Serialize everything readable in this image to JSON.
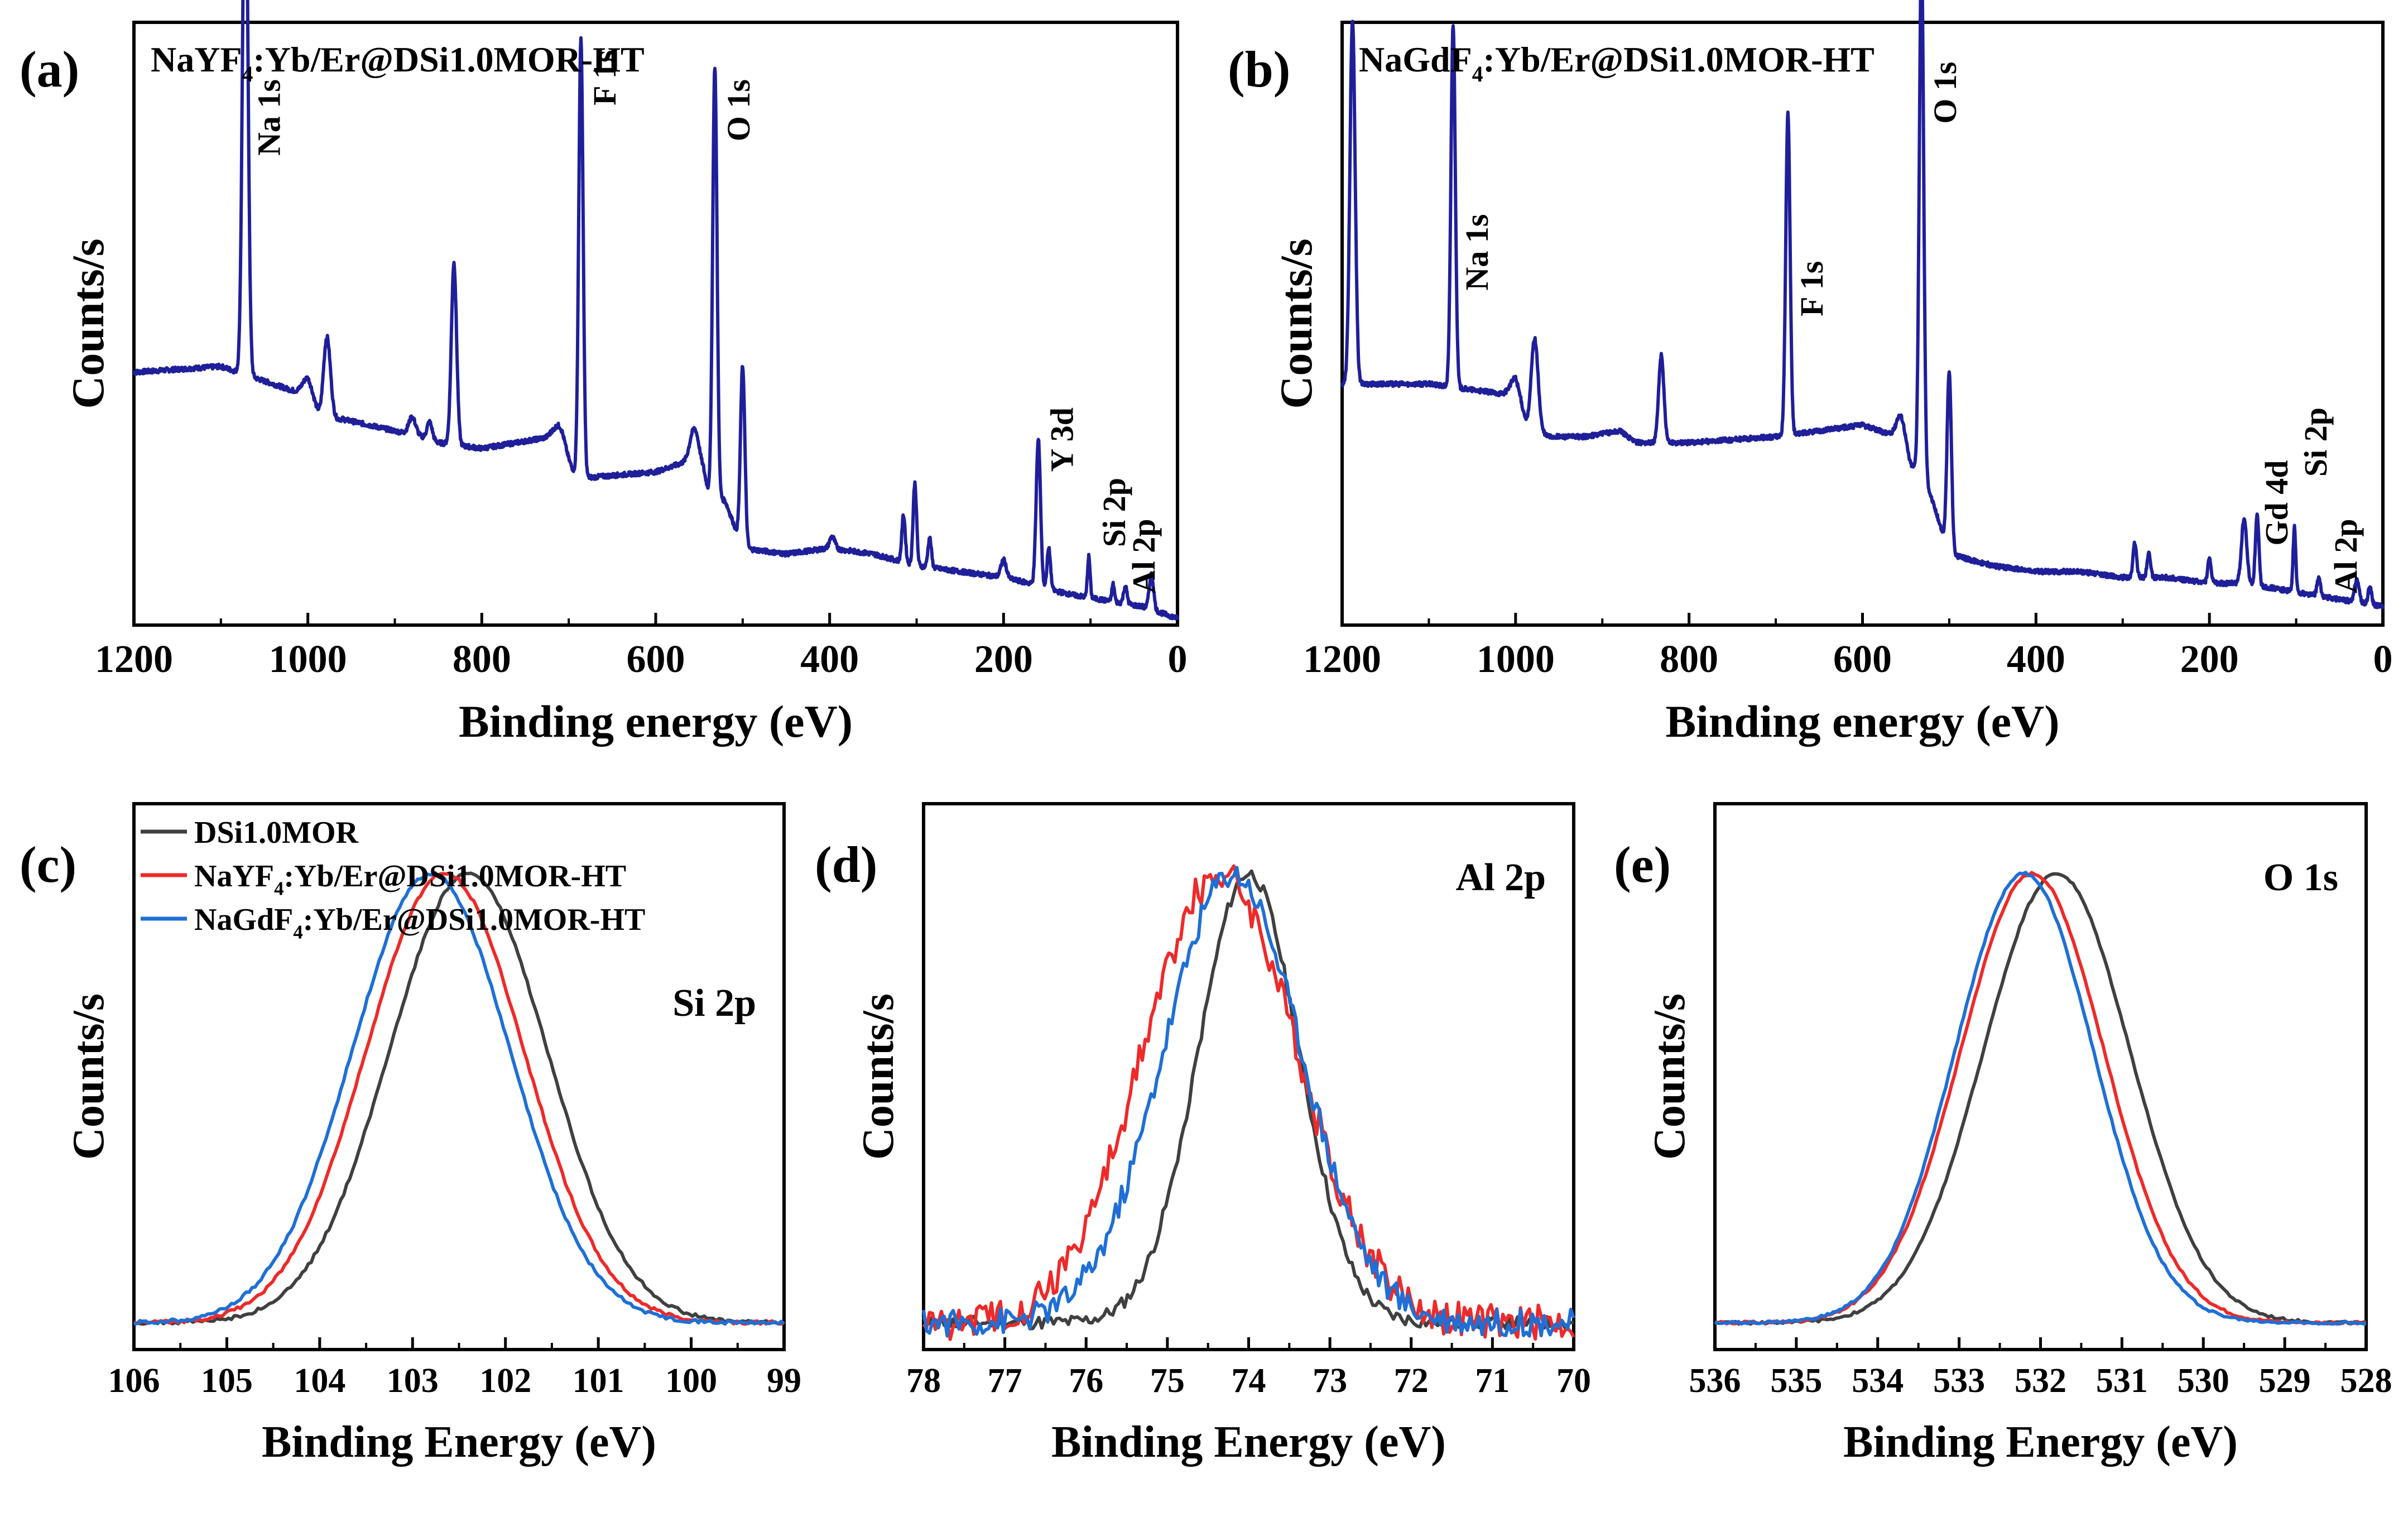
{
  "colors": {
    "survey": "#1f1f9a",
    "series_1": "#404040",
    "series_2": "#ee2a2a",
    "series_3": "#1f6fd6",
    "axis": "#000000"
  },
  "chart_data": [
    {
      "id": "a",
      "panel_label": "(a)",
      "type": "line",
      "title": "NaYF4:Yb/Er@DSi1.0MOR-HT",
      "title_parts": {
        "pre": "NaYF",
        "sub": "4",
        "post": ":Yb/Er@DSi1.0MOR-HT"
      },
      "xlabel": "Binding energy (eV)",
      "ylabel": "Counts/s",
      "xlim": [
        1200,
        0
      ],
      "ylim": [
        0,
        100
      ],
      "xticks": [
        1200,
        1000,
        800,
        600,
        400,
        200,
        0
      ],
      "xtick_labels": [
        "1200",
        "1000",
        "800",
        "600",
        "400",
        "200",
        "0"
      ],
      "baseline": [
        [
          1200,
          42
        ],
        [
          1100,
          43
        ],
        [
          1000,
          38
        ],
        [
          985,
          34
        ],
        [
          960,
          34
        ],
        [
          900,
          32
        ],
        [
          870,
          31
        ],
        [
          850,
          30
        ],
        [
          800,
          29
        ],
        [
          720,
          31
        ],
        [
          690,
          24
        ],
        [
          680,
          24
        ],
        [
          600,
          25
        ],
        [
          560,
          27
        ],
        [
          545,
          25
        ],
        [
          540,
          22
        ],
        [
          520,
          20
        ],
        [
          500,
          12
        ],
        [
          450,
          11
        ],
        [
          400,
          12
        ],
        [
          350,
          11
        ],
        [
          300,
          9
        ],
        [
          250,
          8
        ],
        [
          200,
          7
        ],
        [
          170,
          6
        ],
        [
          150,
          5
        ],
        [
          120,
          4
        ],
        [
          80,
          3
        ],
        [
          40,
          2
        ],
        [
          0,
          0
        ]
      ],
      "peaks": [
        [
          1072,
          96,
          3
        ],
        [
          1000,
          3,
          6
        ],
        [
          978,
          14,
          4
        ],
        [
          880,
          3,
          4
        ],
        [
          860,
          3,
          3
        ],
        [
          832,
          31,
          3
        ],
        [
          710,
          4,
          6
        ],
        [
          686,
          75,
          2.5
        ],
        [
          555,
          6,
          5
        ],
        [
          532,
          73,
          2.5
        ],
        [
          500,
          31,
          2.5
        ],
        [
          397,
          2,
          3
        ],
        [
          315,
          8,
          2
        ],
        [
          302,
          14,
          2
        ],
        [
          285,
          5,
          2
        ],
        [
          200,
          3,
          3
        ],
        [
          160,
          25,
          2.5
        ],
        [
          148,
          7,
          2
        ],
        [
          102,
          7,
          1.5
        ],
        [
          74,
          3,
          1.5
        ],
        [
          60,
          3,
          2
        ],
        [
          30,
          6,
          2.5
        ]
      ],
      "annotations": [
        {
          "label": "Na 1s",
          "x": 1072,
          "y": 92
        },
        {
          "label": "F 1s",
          "x": 686,
          "y": 97
        },
        {
          "label": "O 1s",
          "x": 532,
          "y": 92
        },
        {
          "label": "Y 3d",
          "x": 160,
          "y": 36
        },
        {
          "label": "Si 2p",
          "x": 100,
          "y": 24
        },
        {
          "label": "Al 2p",
          "x": 66,
          "y": 17
        }
      ]
    },
    {
      "id": "b",
      "panel_label": "(b)",
      "type": "line",
      "title": "NaGdF4:Yb/Er@DSi1.0MOR-HT",
      "title_parts": {
        "pre": "NaGdF",
        "sub": "4",
        "post": ":Yb/Er@DSi1.0MOR-HT"
      },
      "xlabel": "Binding energy (eV)",
      "ylabel": "Counts/s",
      "xlim": [
        1200,
        0
      ],
      "ylim": [
        0,
        100
      ],
      "xticks": [
        1200,
        1000,
        800,
        600,
        400,
        200,
        0
      ],
      "xtick_labels": [
        "1200",
        "1000",
        "800",
        "600",
        "400",
        "200",
        "0"
      ],
      "baseline": [
        [
          1200,
          40
        ],
        [
          1190,
          40
        ],
        [
          1100,
          40
        ],
        [
          1000,
          38
        ],
        [
          985,
          32
        ],
        [
          960,
          31
        ],
        [
          920,
          31
        ],
        [
          880,
          32
        ],
        [
          860,
          30
        ],
        [
          800,
          30
        ],
        [
          700,
          31
        ],
        [
          650,
          32
        ],
        [
          600,
          33
        ],
        [
          560,
          31
        ],
        [
          545,
          26
        ],
        [
          530,
          25
        ],
        [
          500,
          11
        ],
        [
          450,
          9
        ],
        [
          400,
          8
        ],
        [
          350,
          8
        ],
        [
          300,
          7
        ],
        [
          250,
          7
        ],
        [
          200,
          6
        ],
        [
          160,
          6
        ],
        [
          120,
          5
        ],
        [
          80,
          4
        ],
        [
          40,
          3
        ],
        [
          0,
          2
        ]
      ],
      "peaks": [
        [
          1188,
          62,
          3
        ],
        [
          1072,
          62,
          2.5
        ],
        [
          1000,
          3,
          6
        ],
        [
          978,
          16,
          4
        ],
        [
          832,
          15,
          3
        ],
        [
          686,
          55,
          2.5
        ],
        [
          555,
          5,
          5
        ],
        [
          532,
          89,
          2.5
        ],
        [
          500,
          31,
          2.5
        ],
        [
          286,
          6,
          2
        ],
        [
          270,
          4,
          2
        ],
        [
          200,
          4,
          2
        ],
        [
          160,
          11,
          3
        ],
        [
          145,
          12,
          2
        ],
        [
          102,
          11,
          1.5
        ],
        [
          74,
          3,
          2
        ],
        [
          30,
          4,
          2.5
        ],
        [
          15,
          3,
          2
        ]
      ],
      "annotations": [
        {
          "label": "Na 1s",
          "x": 1072,
          "y": 69
        },
        {
          "label": "F 1s",
          "x": 686,
          "y": 61
        },
        {
          "label": "O 1s",
          "x": 532,
          "y": 95
        },
        {
          "label": "Gd 4d",
          "x": 150,
          "y": 27
        },
        {
          "label": "Si 2p",
          "x": 105,
          "y": 36
        },
        {
          "label": "Al 2p",
          "x": 70,
          "y": 17
        }
      ]
    },
    {
      "id": "c",
      "panel_label": "(c)",
      "type": "line",
      "title": "Si 2p",
      "xlabel": "Binding Energy (eV)",
      "ylabel": "Counts/s",
      "xlim": [
        106,
        99
      ],
      "ylim": [
        0,
        1
      ],
      "xticks": [
        106,
        105,
        104,
        103,
        102,
        101,
        100,
        99
      ],
      "xtick_labels": [
        "106",
        "105",
        "104",
        "103",
        "102",
        "101",
        "100",
        "99"
      ],
      "legend": {
        "placement": "top-left"
      },
      "series": [
        {
          "name": "DSi1.0MOR",
          "name_parts": {
            "pre": "DSi1.0MOR",
            "sub": "",
            "post": ""
          },
          "center": 102.4,
          "width": 0.85,
          "noise": 0.004
        },
        {
          "name": "NaYF4:Yb/Er@DSi1.0MOR-HT",
          "name_parts": {
            "pre": "NaYF",
            "sub": "4",
            "post": ":Yb/Er@DSi1.0MOR-HT"
          },
          "center": 102.65,
          "width": 0.85,
          "noise": 0.004
        },
        {
          "name": "NaGdF4:Yb/Er@DSi1.0MOR-HT",
          "name_parts": {
            "pre": "NaGdF",
            "sub": "4",
            "post": ":Yb/Er@DSi1.0MOR-HT"
          },
          "center": 102.8,
          "width": 0.85,
          "noise": 0.004
        }
      ]
    },
    {
      "id": "d",
      "panel_label": "(d)",
      "type": "line",
      "title": "Al 2p",
      "xlabel": "Binding Energy (eV)",
      "ylabel": "Counts/s",
      "xlim": [
        78,
        70
      ],
      "ylim": [
        0,
        1
      ],
      "xticks": [
        78,
        77,
        76,
        75,
        74,
        73,
        72,
        71,
        70
      ],
      "xtick_labels": [
        "78",
        "77",
        "76",
        "75",
        "74",
        "73",
        "72",
        "71",
        "70"
      ],
      "series": [
        {
          "name": "DSi1.0MOR",
          "center": 74.0,
          "width": 0.62,
          "noise": 0.015
        },
        {
          "name": "NaYF4:Yb/Er@DSi1.0MOR-HT",
          "center": 74.35,
          "width": 0.95,
          "noise": 0.04
        },
        {
          "name": "NaGdF4:Yb/Er@DSi1.0MOR-HT",
          "center": 74.2,
          "width": 0.85,
          "noise": 0.03
        }
      ]
    },
    {
      "id": "e",
      "panel_label": "(e)",
      "type": "line",
      "title": "O 1s",
      "xlabel": "Binding Energy (eV)",
      "ylabel": "Counts/s",
      "xlim": [
        536,
        528
      ],
      "ylim": [
        0,
        1
      ],
      "xticks": [
        536,
        535,
        534,
        533,
        532,
        531,
        530,
        529,
        528
      ],
      "xtick_labels": [
        "536",
        "535",
        "534",
        "533",
        "532",
        "531",
        "530",
        "529",
        "528"
      ],
      "series": [
        {
          "name": "DSi1.0MOR",
          "center": 531.8,
          "width": 0.9,
          "noise": 0.003
        },
        {
          "name": "NaYF4:Yb/Er@DSi1.0MOR-HT",
          "center": 532.1,
          "width": 0.88,
          "noise": 0.003
        },
        {
          "name": "NaGdF4:Yb/Er@DSi1.0MOR-HT",
          "center": 532.2,
          "width": 0.85,
          "noise": 0.003
        }
      ]
    }
  ]
}
